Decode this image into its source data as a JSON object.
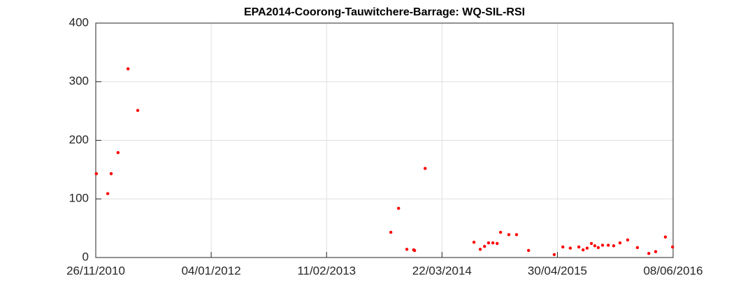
{
  "chart_data": {
    "type": "scatter",
    "title": "EPA2014-Coorong-Tauwitchere-Barrage: WQ-SIL-RSI",
    "x": [
      "28/11/2010",
      "07/01/2011",
      "19/01/2011",
      "12/02/2011",
      "19/03/2011",
      "22/04/2011",
      "24/09/2013",
      "21/10/2013",
      "19/11/2013",
      "13/12/2013",
      "16/12/2013",
      "22/01/2014",
      "12/07/2014",
      "03/08/2014",
      "18/08/2014",
      "01/09/2014",
      "16/09/2014",
      "01/10/2014",
      "13/10/2014",
      "11/11/2014",
      "08/12/2014",
      "19/01/2015",
      "19/04/2015",
      "19/05/2015",
      "14/06/2015",
      "14/07/2015",
      "29/07/2015",
      "12/08/2015",
      "27/08/2015",
      "08/09/2015",
      "20/09/2015",
      "05/10/2015",
      "25/10/2015",
      "13/11/2015",
      "05/12/2015",
      "01/01/2016",
      "04/02/2016",
      "15/03/2016",
      "08/04/2016",
      "12/05/2016",
      "06/06/2016"
    ],
    "values": [
      143,
      109,
      143,
      179,
      322,
      251,
      43,
      84,
      14,
      13,
      12,
      152,
      26,
      14,
      19,
      25,
      25,
      24,
      43,
      39,
      39,
      12,
      5,
      18,
      16,
      18,
      13,
      16,
      24,
      20,
      17,
      21,
      21,
      20,
      25,
      30,
      17,
      7,
      10,
      35,
      18
    ],
    "color": "#ff0000",
    "xlim": [
      "26/11/2010",
      "08/06/2016"
    ],
    "xticks": [
      "26/11/2010",
      "04/01/2012",
      "11/02/2013",
      "22/03/2014",
      "30/04/2015",
      "08/06/2016"
    ],
    "ylim": [
      0,
      400
    ],
    "yticks": [
      0,
      100,
      200,
      300,
      400
    ],
    "grid": true
  }
}
